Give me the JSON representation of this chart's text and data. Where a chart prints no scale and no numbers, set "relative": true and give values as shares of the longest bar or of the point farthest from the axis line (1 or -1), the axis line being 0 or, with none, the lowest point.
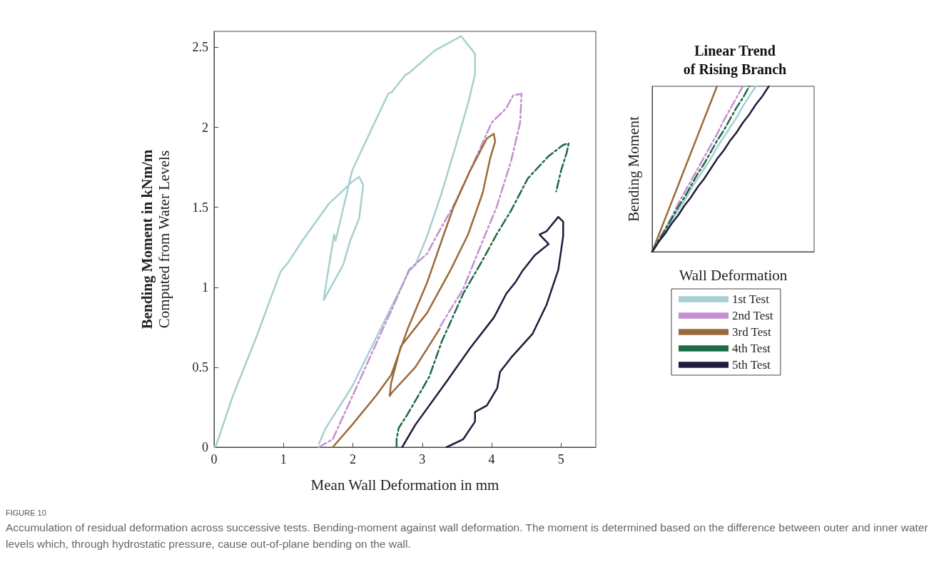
{
  "chart_data": [
    {
      "type": "line",
      "xlabel": "Mean Wall Deformation in mm",
      "ylabel": "Bending Moment in kNm/m\nComputed from Water Levels",
      "xlim": [
        0,
        5.5
      ],
      "xticks": [
        0,
        1,
        2,
        3,
        4,
        5
      ],
      "ylim": [
        0,
        2.6
      ],
      "yticks": [
        0,
        0.5,
        1,
        1.5,
        2,
        2.5
      ],
      "grid": false,
      "legend": false,
      "series": [
        {
          "color": "#a8cfd1",
          "line_style": "solid",
          "x": [
            0,
            0.03,
            0.27,
            0.62,
            0.96,
            1.06,
            1.27,
            1.65,
            1.99,
            2.09,
            2.15,
            2.09,
            1.96,
            1.86,
            1.58,
            1.61,
            1.73,
            1.75,
            1.99,
            2.27,
            2.51,
            2.56,
            2.76,
            2.81,
            3.18,
            3.56,
            3.76,
            3.76,
            3.66,
            3.48,
            3.28,
            3.07,
            2.9,
            2.81,
            2.4,
            1.99,
            1.61,
            1.51
          ],
          "values": [
            0,
            0.01,
            0.32,
            0.7,
            1.1,
            1.15,
            1.29,
            1.52,
            1.66,
            1.69,
            1.64,
            1.43,
            1.29,
            1.14,
            0.92,
            1.01,
            1.33,
            1.29,
            1.73,
            1.99,
            2.21,
            2.22,
            2.33,
            2.34,
            2.48,
            2.57,
            2.46,
            2.33,
            2.15,
            1.88,
            1.59,
            1.32,
            1.14,
            1.1,
            0.74,
            0.38,
            0.12,
            0.02
          ]
        },
        {
          "color": "#c48ed0",
          "line_style": "dashed",
          "x": [
            1.51,
            1.71,
            2.12,
            2.4,
            2.56,
            2.81,
            3.07,
            3.18,
            3.45,
            3.69,
            4.0,
            4.21,
            4.31,
            4.43,
            4.41,
            4.28,
            4.07,
            3.87,
            3.59,
            3.25
          ],
          "values": [
            0,
            0.05,
            0.44,
            0.71,
            0.86,
            1.11,
            1.21,
            1.3,
            1.51,
            1.73,
            2.03,
            2.12,
            2.2,
            2.21,
            2.03,
            1.79,
            1.5,
            1.29,
            0.99,
            0.75
          ]
        },
        {
          "color": "#9b6a3a",
          "line_style": "solid",
          "x": [
            1.71,
            1.99,
            2.33,
            2.55,
            2.79,
            3.07,
            3.31,
            3.45,
            3.69,
            3.93,
            4.03,
            4.05,
            3.98,
            3.87,
            3.66,
            3.41,
            3.07,
            2.69,
            2.55,
            2.53,
            2.56,
            2.9,
            3.25
          ],
          "values": [
            0,
            0.14,
            0.32,
            0.45,
            0.74,
            1.03,
            1.33,
            1.5,
            1.73,
            1.93,
            1.96,
            1.91,
            1.81,
            1.59,
            1.33,
            1.11,
            0.84,
            0.63,
            0.4,
            0.32,
            0.34,
            0.5,
            0.74
          ]
        },
        {
          "color": "#1c6a45",
          "line_style": "dashed",
          "x": [
            2.63,
            2.63,
            2.66,
            2.78,
            2.9,
            3.1,
            3.28,
            3.59,
            3.87,
            4.07,
            4.28,
            4.52,
            4.82,
            5.03,
            5.11,
            5.08,
            5.0,
            4.93
          ],
          "values": [
            0,
            0.05,
            0.12,
            0.2,
            0.29,
            0.44,
            0.66,
            0.96,
            1.17,
            1.33,
            1.48,
            1.68,
            1.82,
            1.89,
            1.9,
            1.84,
            1.73,
            1.6
          ]
        },
        {
          "color": "#1f1c3b",
          "line_style": "solid",
          "x": [
            2.71,
            2.9,
            3.35,
            3.69,
            4.03,
            4.08,
            4.21,
            4.34,
            4.44,
            4.62,
            4.82,
            4.69,
            4.79,
            4.96,
            5.03,
            5.03,
            4.96,
            4.79,
            4.59,
            4.28,
            4.12,
            4.08,
            3.93,
            3.76,
            3.76,
            3.59,
            3.35
          ],
          "values": [
            0,
            0.14,
            0.41,
            0.62,
            0.81,
            0.85,
            0.96,
            1.03,
            1.1,
            1.2,
            1.27,
            1.33,
            1.35,
            1.44,
            1.41,
            1.32,
            1.11,
            0.89,
            0.71,
            0.56,
            0.47,
            0.37,
            0.26,
            0.22,
            0.16,
            0.05,
            0
          ]
        }
      ],
      "annotations": [
        "FIGURE 10",
        "Accumulation of residual deformation across successive tests. Bending-moment against wall deformation. The moment is determined based on the difference between outer and inner water levels which, through hydrostatic pressure, cause out-of-plane bending on the wall."
      ]
    },
    {
      "type": "line",
      "title": "Linear Trend\nof Rising Branch",
      "xlabel": "Wall Deformation",
      "ylabel": "Bending Moment",
      "relative": true,
      "grid": false,
      "legend": "bottom",
      "categories": [
        null,
        null,
        null,
        null,
        null,
        null,
        null,
        null,
        null,
        null,
        null,
        null,
        null,
        null,
        null,
        null,
        null,
        null,
        null,
        null,
        null,
        null,
        null,
        null,
        null,
        null
      ],
      "series": [
        {
          "name": "1st Test",
          "color": "#a8cfd1",
          "line_style": "solid",
          "values": [
            0,
            0.06,
            0.13,
            0.19,
            0.25,
            0.31,
            0.38,
            0.44,
            0.5,
            0.56,
            0.63,
            0.69,
            0.75,
            0.81,
            0.88,
            0.94,
            1,
            null,
            null,
            null,
            null,
            null,
            null,
            null,
            null,
            null
          ]
        },
        {
          "name": "2nd Test",
          "color": "#c48ed0",
          "line_style": "dashed",
          "values": [
            0,
            0.07,
            0.14,
            0.21,
            0.29,
            0.36,
            0.43,
            0.5,
            0.57,
            0.64,
            0.71,
            0.79,
            0.86,
            0.93,
            1,
            null,
            null,
            null,
            null,
            null,
            null,
            null,
            null,
            null,
            null,
            null
          ]
        },
        {
          "name": "3rd Test",
          "color": "#9b6a3a",
          "line_style": "solid",
          "values": [
            0,
            0.1,
            0.2,
            0.3,
            0.4,
            0.5,
            0.6,
            0.7,
            0.8,
            0.9,
            1,
            null,
            null,
            null,
            null,
            null,
            null,
            null,
            null,
            null,
            null,
            null,
            null,
            null,
            null,
            null
          ]
        },
        {
          "name": "4th Test",
          "color": "#1c6a45",
          "line_style": "dashed",
          "values": [
            0,
            0.07,
            0.13,
            0.2,
            0.27,
            0.33,
            0.4,
            0.47,
            0.53,
            0.6,
            0.67,
            0.73,
            0.8,
            0.87,
            0.93,
            1,
            null,
            null,
            null,
            null,
            null,
            null,
            null,
            null,
            null,
            null
          ]
        },
        {
          "name": "5th Test",
          "color": "#1f1c3b",
          "line_style": "solid",
          "values": [
            0,
            0.06,
            0.11,
            0.17,
            0.22,
            0.28,
            0.33,
            0.39,
            0.44,
            0.5,
            0.56,
            0.61,
            0.67,
            0.72,
            0.78,
            0.83,
            0.89,
            0.94,
            1,
            null,
            null,
            null,
            null,
            null,
            null,
            null
          ]
        }
      ]
    }
  ]
}
